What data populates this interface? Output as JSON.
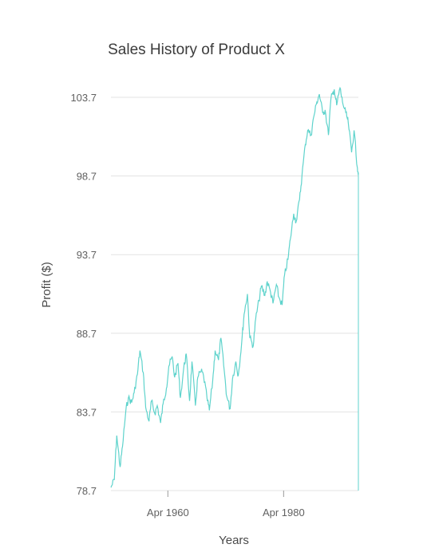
{
  "chart_data": {
    "type": "line",
    "title": "Sales History of Product X",
    "xlabel": "Years",
    "ylabel": "Profit ($)",
    "x_ticks": [
      "Apr 1960",
      "Apr 1980"
    ],
    "y_ticks": [
      "78.7",
      "83.7",
      "88.7",
      "93.7",
      "98.7",
      "103.7"
    ],
    "xlim": [
      "1950-06",
      "1993-03"
    ],
    "ylim": [
      78.7,
      103.7
    ],
    "grid": true,
    "legend": "none",
    "line_color": "#5fd3cc",
    "series": [
      {
        "x": [
          "1950-06",
          "1951-01",
          "1951-06",
          "1952-01",
          "1952-06",
          "1953-01",
          "1953-06",
          "1954-01",
          "1954-06",
          "1955-01",
          "1955-06",
          "1956-01",
          "1956-06",
          "1957-01",
          "1957-06",
          "1958-01",
          "1958-06",
          "1959-01",
          "1959-06",
          "1960-01",
          "1960-06",
          "1961-01",
          "1961-06",
          "1962-01",
          "1962-06",
          "1963-01",
          "1963-06",
          "1964-01",
          "1964-06",
          "1965-01",
          "1965-06",
          "1966-01",
          "1966-06",
          "1967-01",
          "1967-06",
          "1968-01",
          "1968-06",
          "1969-01",
          "1969-06",
          "1970-01",
          "1970-06",
          "1971-01",
          "1971-06",
          "1972-01",
          "1972-06",
          "1973-01",
          "1973-06",
          "1974-01",
          "1974-06",
          "1975-01",
          "1975-06",
          "1976-01",
          "1976-06",
          "1977-01",
          "1977-06",
          "1978-01",
          "1978-06",
          "1979-01",
          "1979-06",
          "1980-01",
          "1980-06",
          "1981-01",
          "1981-06",
          "1982-01",
          "1982-06",
          "1983-01",
          "1983-06",
          "1984-01",
          "1984-06",
          "1985-01",
          "1985-06",
          "1986-01",
          "1986-06",
          "1987-01",
          "1987-06",
          "1988-01",
          "1988-06",
          "1989-01",
          "1989-06",
          "1990-01",
          "1990-06",
          "1991-01",
          "1991-06",
          "1992-01",
          "1992-06",
          "1993-01",
          "1993-03"
        ],
        "values": [
          78.9,
          79.4,
          82.2,
          80.2,
          81.5,
          83.8,
          84.6,
          84.3,
          84.9,
          86.1,
          87.6,
          86.2,
          84.0,
          83.1,
          84.4,
          83.6,
          84.1,
          83.0,
          84.2,
          85.2,
          86.6,
          87.2,
          85.9,
          86.8,
          84.6,
          86.5,
          87.4,
          84.4,
          86.9,
          84.1,
          85.9,
          86.3,
          86.0,
          84.6,
          83.8,
          85.7,
          87.6,
          87.0,
          88.4,
          86.3,
          84.7,
          83.9,
          85.8,
          86.9,
          86.0,
          88.1,
          89.9,
          91.2,
          88.4,
          87.9,
          89.6,
          90.8,
          91.7,
          91.1,
          92.0,
          91.3,
          90.6,
          91.8,
          91.0,
          90.5,
          92.4,
          93.4,
          94.7,
          96.3,
          95.8,
          97.2,
          98.7,
          100.7,
          101.6,
          101.3,
          102.4,
          103.4,
          103.9,
          102.7,
          102.9,
          101.3,
          103.6,
          104.2,
          103.2,
          104.3,
          103.4,
          102.7,
          102.1,
          100.2,
          101.6,
          99.2,
          98.9
        ]
      }
    ]
  }
}
